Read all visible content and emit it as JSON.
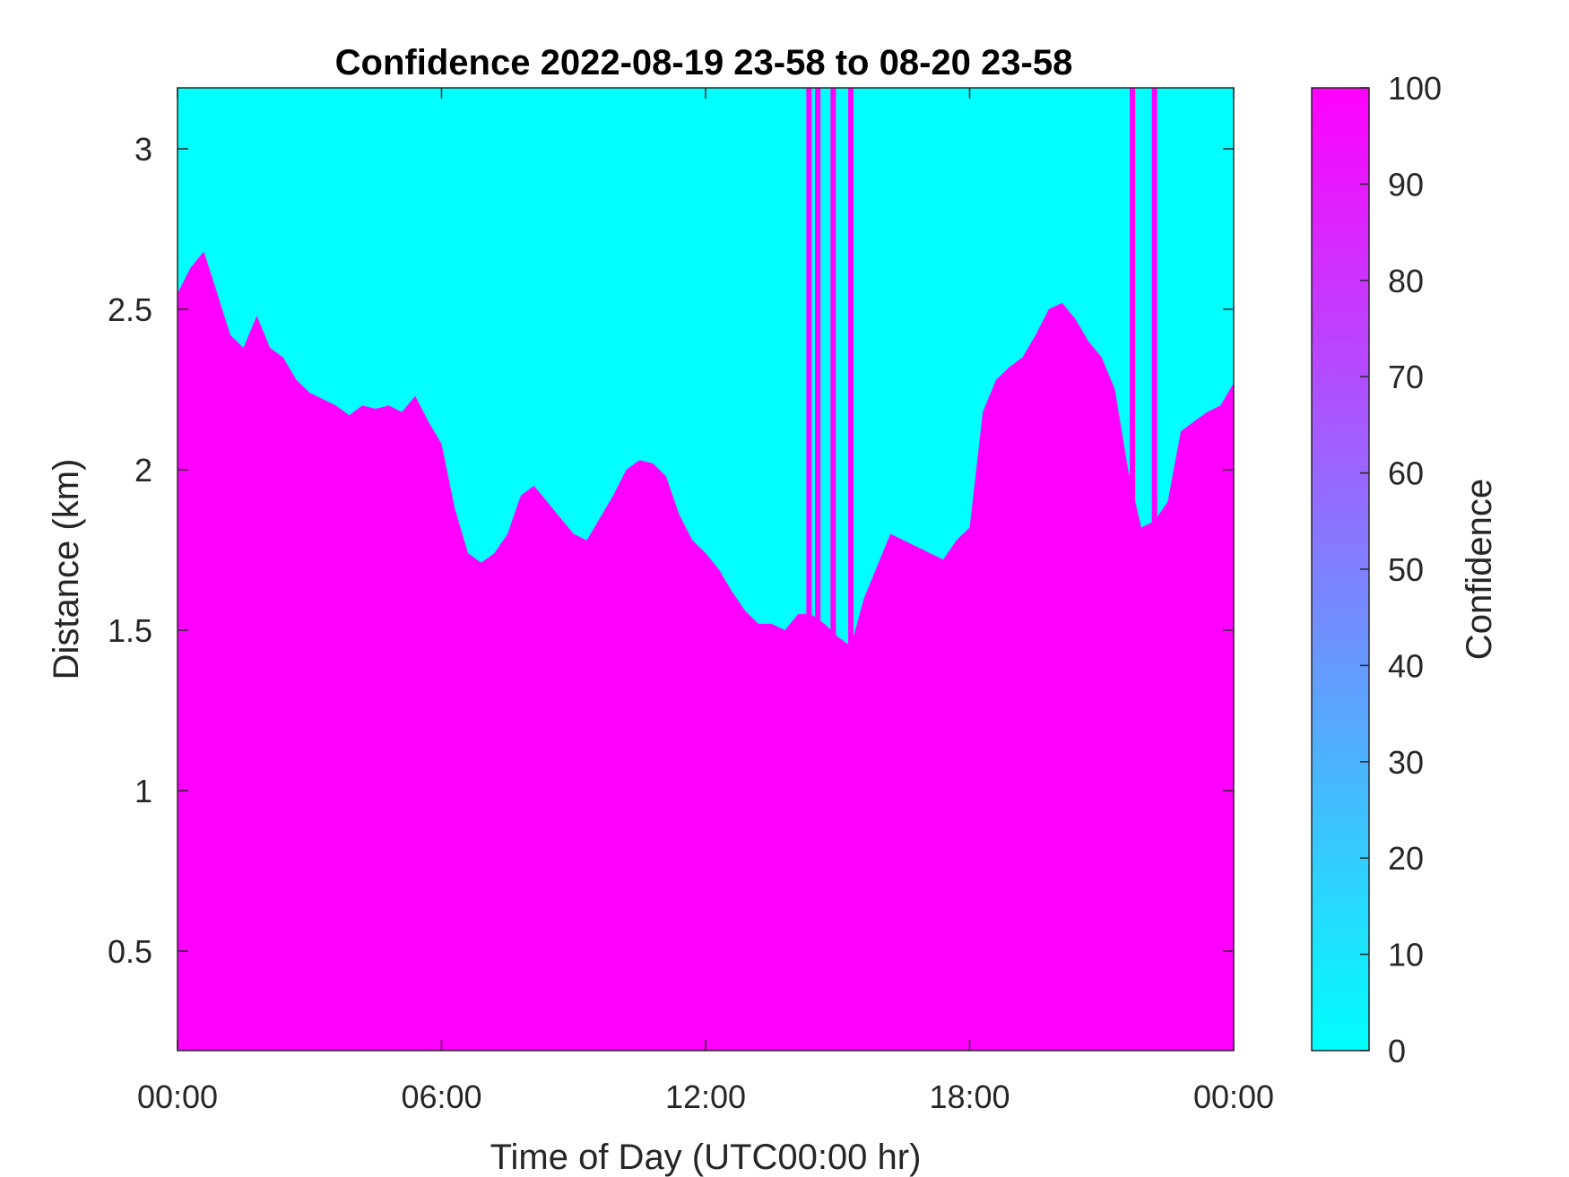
{
  "chart_data": {
    "type": "heatmap",
    "title": "Confidence 2022-08-19 23-58 to 08-20 23-58",
    "xlabel": "Time of Day (UTC00:00 hr)",
    "ylabel": "Distance (km)",
    "xlim_hours": [
      0,
      24
    ],
    "ylim": [
      0.19,
      3.19
    ],
    "x_ticks": [
      {
        "value": 0,
        "label": "00:00"
      },
      {
        "value": 6,
        "label": "06:00"
      },
      {
        "value": 12,
        "label": "12:00"
      },
      {
        "value": 18,
        "label": "18:00"
      },
      {
        "value": 24,
        "label": "00:00"
      }
    ],
    "y_ticks": [
      {
        "value": 0.5,
        "label": "0.5"
      },
      {
        "value": 1,
        "label": "1"
      },
      {
        "value": 1.5,
        "label": "1.5"
      },
      {
        "value": 2,
        "label": "2"
      },
      {
        "value": 2.5,
        "label": "2.5"
      },
      {
        "value": 3,
        "label": "3"
      }
    ],
    "colorbar": {
      "label": "Confidence",
      "range": [
        0,
        100
      ],
      "ticks": [
        {
          "value": 0,
          "label": "0"
        },
        {
          "value": 10,
          "label": "10"
        },
        {
          "value": 20,
          "label": "20"
        },
        {
          "value": 30,
          "label": "30"
        },
        {
          "value": 40,
          "label": "40"
        },
        {
          "value": 50,
          "label": "50"
        },
        {
          "value": 60,
          "label": "60"
        },
        {
          "value": 70,
          "label": "70"
        },
        {
          "value": 80,
          "label": "80"
        },
        {
          "value": 90,
          "label": "90"
        },
        {
          "value": 100,
          "label": "100"
        }
      ],
      "colormap": [
        "#00ffff",
        "#ff00ff"
      ]
    },
    "low_value": 0,
    "high_value": 100,
    "boundary_km": [
      [
        0.0,
        2.55
      ],
      [
        0.3,
        2.63
      ],
      [
        0.6,
        2.68
      ],
      [
        0.9,
        2.55
      ],
      [
        1.2,
        2.42
      ],
      [
        1.5,
        2.38
      ],
      [
        1.8,
        2.48
      ],
      [
        2.1,
        2.38
      ],
      [
        2.4,
        2.35
      ],
      [
        2.7,
        2.28
      ],
      [
        3.0,
        2.24
      ],
      [
        3.3,
        2.22
      ],
      [
        3.6,
        2.2
      ],
      [
        3.9,
        2.17
      ],
      [
        4.2,
        2.2
      ],
      [
        4.5,
        2.19
      ],
      [
        4.8,
        2.2
      ],
      [
        5.1,
        2.18
      ],
      [
        5.4,
        2.23
      ],
      [
        5.7,
        2.15
      ],
      [
        6.0,
        2.08
      ],
      [
        6.3,
        1.88
      ],
      [
        6.6,
        1.74
      ],
      [
        6.9,
        1.71
      ],
      [
        7.2,
        1.74
      ],
      [
        7.5,
        1.8
      ],
      [
        7.8,
        1.92
      ],
      [
        8.1,
        1.95
      ],
      [
        8.4,
        1.9
      ],
      [
        8.7,
        1.85
      ],
      [
        9.0,
        1.8
      ],
      [
        9.3,
        1.78
      ],
      [
        9.6,
        1.85
      ],
      [
        9.9,
        1.92
      ],
      [
        10.2,
        2.0
      ],
      [
        10.5,
        2.03
      ],
      [
        10.8,
        2.02
      ],
      [
        11.1,
        1.98
      ],
      [
        11.4,
        1.86
      ],
      [
        11.7,
        1.78
      ],
      [
        12.0,
        1.74
      ],
      [
        12.3,
        1.69
      ],
      [
        12.6,
        1.62
      ],
      [
        12.9,
        1.56
      ],
      [
        13.2,
        1.52
      ],
      [
        13.5,
        1.52
      ],
      [
        13.8,
        1.5
      ],
      [
        14.1,
        1.55
      ],
      [
        14.4,
        1.55
      ],
      [
        14.7,
        1.52
      ],
      [
        15.0,
        1.48
      ],
      [
        15.3,
        1.45
      ],
      [
        15.6,
        1.6
      ],
      [
        15.9,
        1.7
      ],
      [
        16.2,
        1.8
      ],
      [
        16.5,
        1.78
      ],
      [
        16.8,
        1.76
      ],
      [
        17.1,
        1.74
      ],
      [
        17.4,
        1.72
      ],
      [
        17.7,
        1.78
      ],
      [
        18.0,
        1.82
      ],
      [
        18.3,
        2.18
      ],
      [
        18.6,
        2.28
      ],
      [
        18.9,
        2.32
      ],
      [
        19.2,
        2.35
      ],
      [
        19.5,
        2.42
      ],
      [
        19.8,
        2.5
      ],
      [
        20.1,
        2.52
      ],
      [
        20.4,
        2.47
      ],
      [
        20.7,
        2.4
      ],
      [
        21.0,
        2.35
      ],
      [
        21.3,
        2.25
      ],
      [
        21.6,
        2.0
      ],
      [
        21.9,
        1.82
      ],
      [
        22.2,
        1.84
      ],
      [
        22.5,
        1.9
      ],
      [
        22.8,
        2.12
      ],
      [
        23.1,
        2.15
      ],
      [
        23.4,
        2.18
      ],
      [
        23.7,
        2.2
      ],
      [
        24.0,
        2.27
      ]
    ],
    "full_columns_hours": [
      14.35,
      14.55,
      14.9,
      15.3,
      21.7,
      22.2
    ]
  }
}
